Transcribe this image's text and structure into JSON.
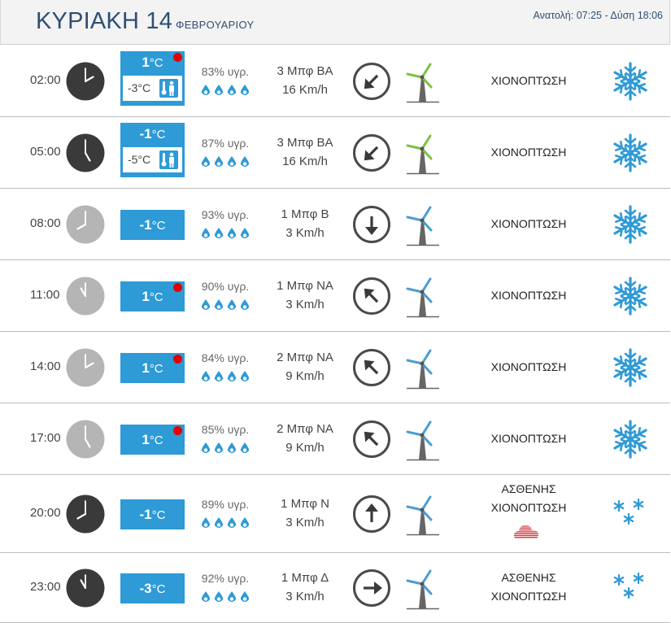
{
  "header": {
    "day": "ΚΥΡΙΑΚΗ 14",
    "month": "ΦΕΒΡΟΥΑΡΙΟΥ",
    "sun": "Ανατολή: 07:25 - Δύση 18:06"
  },
  "colors": {
    "accent": "#2e9ad6",
    "header_text": "#2f4f74",
    "dark_clock": "#3a3a3a",
    "light_clock": "#b5b5b5",
    "warning": "#e30000",
    "wind_green": "#7cc242",
    "wind_blue": "#4a9dd3"
  },
  "rows": [
    {
      "time": "02:00",
      "clock": "dark",
      "hour": 2,
      "temp": "1",
      "unit": "°C",
      "alert": true,
      "feels": "-3°C",
      "humidity": "83% υγρ.",
      "wind_force": "3 Μπφ ΒΑ",
      "wind_speed": "16 Km/h",
      "direction": "ΒΑ",
      "windmill": "green",
      "desc1": "ΧΙΟΝΟΠΤΩΣΗ",
      "desc2": "",
      "icon": "snowflake-icon"
    },
    {
      "time": "05:00",
      "clock": "dark",
      "hour": 5,
      "temp": "-1",
      "unit": "°C",
      "alert": false,
      "feels": "-5°C",
      "humidity": "87% υγρ.",
      "wind_force": "3 Μπφ ΒΑ",
      "wind_speed": "16 Km/h",
      "direction": "ΒΑ",
      "windmill": "green",
      "desc1": "ΧΙΟΝΟΠΤΩΣΗ",
      "desc2": "",
      "icon": "snowflake-icon"
    },
    {
      "time": "08:00",
      "clock": "light",
      "hour": 8,
      "temp": "-1",
      "unit": "°C",
      "alert": false,
      "feels": null,
      "humidity": "93% υγρ.",
      "wind_force": "1 Μπφ Β",
      "wind_speed": "3 Km/h",
      "direction": "Β",
      "windmill": "blue",
      "desc1": "ΧΙΟΝΟΠΤΩΣΗ",
      "desc2": "",
      "icon": "snowflake-icon"
    },
    {
      "time": "11:00",
      "clock": "light",
      "hour": 11,
      "temp": "1",
      "unit": "°C",
      "alert": true,
      "feels": null,
      "humidity": "90% υγρ.",
      "wind_force": "1 Μπφ ΝΑ",
      "wind_speed": "3 Km/h",
      "direction": "ΝΑ",
      "windmill": "blue",
      "desc1": "ΧΙΟΝΟΠΤΩΣΗ",
      "desc2": "",
      "icon": "snowflake-icon"
    },
    {
      "time": "14:00",
      "clock": "light",
      "hour": 2,
      "temp": "1",
      "unit": "°C",
      "alert": true,
      "feels": null,
      "humidity": "84% υγρ.",
      "wind_force": "2 Μπφ ΝΑ",
      "wind_speed": "9 Km/h",
      "direction": "ΝΑ",
      "windmill": "blue",
      "desc1": "ΧΙΟΝΟΠΤΩΣΗ",
      "desc2": "",
      "icon": "snowflake-icon"
    },
    {
      "time": "17:00",
      "clock": "light",
      "hour": 5,
      "temp": "1",
      "unit": "°C",
      "alert": true,
      "feels": null,
      "humidity": "85% υγρ.",
      "wind_force": "2 Μπφ ΝΑ",
      "wind_speed": "9 Km/h",
      "direction": "ΝΑ",
      "windmill": "blue",
      "desc1": "ΧΙΟΝΟΠΤΩΣΗ",
      "desc2": "",
      "icon": "snowflake-icon"
    },
    {
      "time": "20:00",
      "clock": "dark",
      "hour": 8,
      "temp": "-1",
      "unit": "°C",
      "alert": false,
      "feels": null,
      "humidity": "89% υγρ.",
      "wind_force": "1 Μπφ Ν",
      "wind_speed": "3 Km/h",
      "direction": "Ν",
      "windmill": "blue",
      "desc1": "ΑΣΘΕΝΗΣ",
      "desc2": "ΧΙΟΝΟΠΤΩΣΗ",
      "icon": "light-snow-icon",
      "cloud": true
    },
    {
      "time": "23:00",
      "clock": "dark",
      "hour": 11,
      "temp": "-3",
      "unit": "°C",
      "alert": false,
      "feels": null,
      "humidity": "92% υγρ.",
      "wind_force": "1 Μπφ Δ",
      "wind_speed": "3 Km/h",
      "direction": "Δ",
      "windmill": "blue",
      "desc1": "ΑΣΘΕΝΗΣ",
      "desc2": "ΧΙΟΝΟΠΤΩΣΗ",
      "icon": "light-snow-icon"
    }
  ]
}
